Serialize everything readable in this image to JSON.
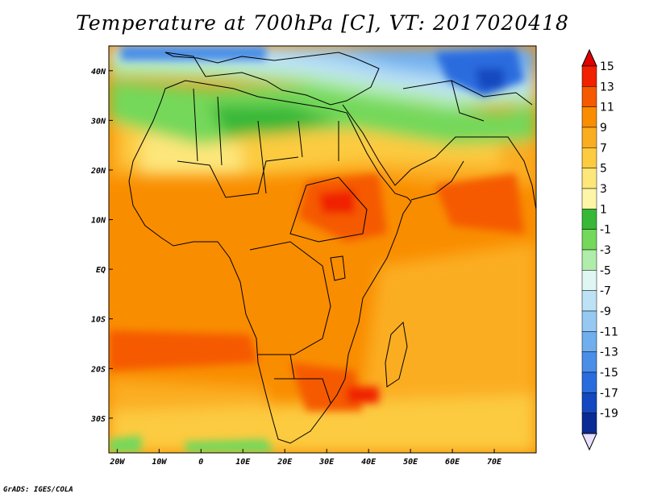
{
  "title": "Temperature at 700hPa [C], VT: 2017020418",
  "credit": "GrADS: IGES/COLA",
  "map": {
    "projection": "latlon",
    "lon_range": [
      -22,
      80
    ],
    "lat_range": [
      -37,
      45
    ],
    "lon_ticks": [
      {
        "value": -20,
        "label": "20W"
      },
      {
        "value": -10,
        "label": "10W"
      },
      {
        "value": 0,
        "label": "0"
      },
      {
        "value": 10,
        "label": "10E"
      },
      {
        "value": 20,
        "label": "20E"
      },
      {
        "value": 30,
        "label": "30E"
      },
      {
        "value": 40,
        "label": "40E"
      },
      {
        "value": 50,
        "label": "50E"
      },
      {
        "value": 60,
        "label": "60E"
      },
      {
        "value": 70,
        "label": "70E"
      }
    ],
    "lat_ticks": [
      {
        "value": 40,
        "label": "40N"
      },
      {
        "value": 30,
        "label": "30N"
      },
      {
        "value": 20,
        "label": "20N"
      },
      {
        "value": 10,
        "label": "10N"
      },
      {
        "value": 0,
        "label": "EQ"
      },
      {
        "value": -10,
        "label": "10S"
      },
      {
        "value": -20,
        "label": "20S"
      },
      {
        "value": -30,
        "label": "30S"
      }
    ]
  },
  "colorbar": {
    "labels": [
      "15",
      "13",
      "11",
      "9",
      "7",
      "5",
      "3",
      "1",
      "-1",
      "-3",
      "-5",
      "-7",
      "-9",
      "-11",
      "-13",
      "-15",
      "-17",
      "-19"
    ],
    "colors": [
      "#f02000",
      "#f55a00",
      "#f98d00",
      "#fbad20",
      "#fccb40",
      "#fde67a",
      "#fef5a8",
      "#38b838",
      "#74d85a",
      "#b0ecaa",
      "#e0f6f2",
      "#bde2f6",
      "#96c9f2",
      "#70aeee",
      "#4a8ee8",
      "#2a6cde",
      "#1448c0",
      "#0a2a94"
    ],
    "over_color": "#e00000",
    "under_color": "#e8e0ff"
  }
}
